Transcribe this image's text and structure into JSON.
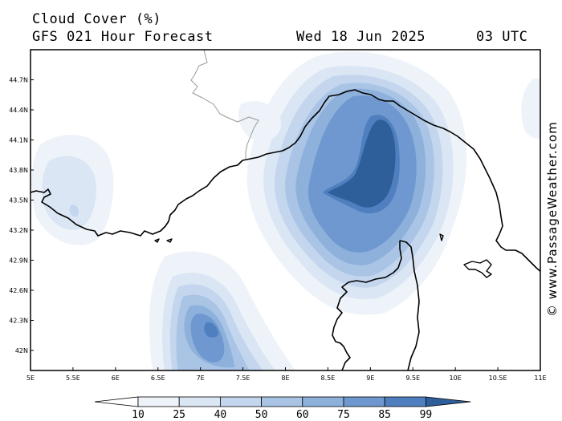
{
  "header": {
    "title": "Cloud Cover (%)",
    "subtitle": "GFS 021 Hour Forecast",
    "date": "Wed 18 Jun 2025",
    "time": "03 UTC"
  },
  "credit": "© www.PassageWeather.com",
  "map": {
    "lat_labels": [
      "44.7N",
      "44.4N",
      "44.1N",
      "43.8N",
      "43.5N",
      "43.2N",
      "42.9N",
      "42.6N",
      "42.3N",
      "42N"
    ],
    "lon_labels": [
      "5E",
      "5.5E",
      "6E",
      "6.5E",
      "7E",
      "7.5E",
      "8E",
      "8.5E",
      "9E",
      "9.5E",
      "10E",
      "10.5E",
      "11E"
    ],
    "lat_values": [
      44.7,
      44.4,
      44.1,
      43.8,
      43.5,
      43.2,
      42.9,
      42.6,
      42.3,
      42.0
    ],
    "lon_values": [
      5,
      5.5,
      6,
      6.5,
      7,
      7.5,
      8,
      8.5,
      9,
      9.5,
      10,
      10.5,
      11
    ],
    "lat_range": [
      41.8,
      45.0
    ],
    "lon_range": [
      5,
      11
    ]
  },
  "legend": {
    "levels": [
      "10",
      "25",
      "40",
      "50",
      "60",
      "75",
      "85",
      "99"
    ],
    "colors": [
      "#ffffff",
      "#eef3fa",
      "#dbe6f4",
      "#c3d6ee",
      "#a9c4e5",
      "#8eb1dc",
      "#6e98cf",
      "#4f7fbf",
      "#2e5f9a"
    ]
  },
  "palette": {
    "coast": "#000000",
    "border": "#999999"
  }
}
